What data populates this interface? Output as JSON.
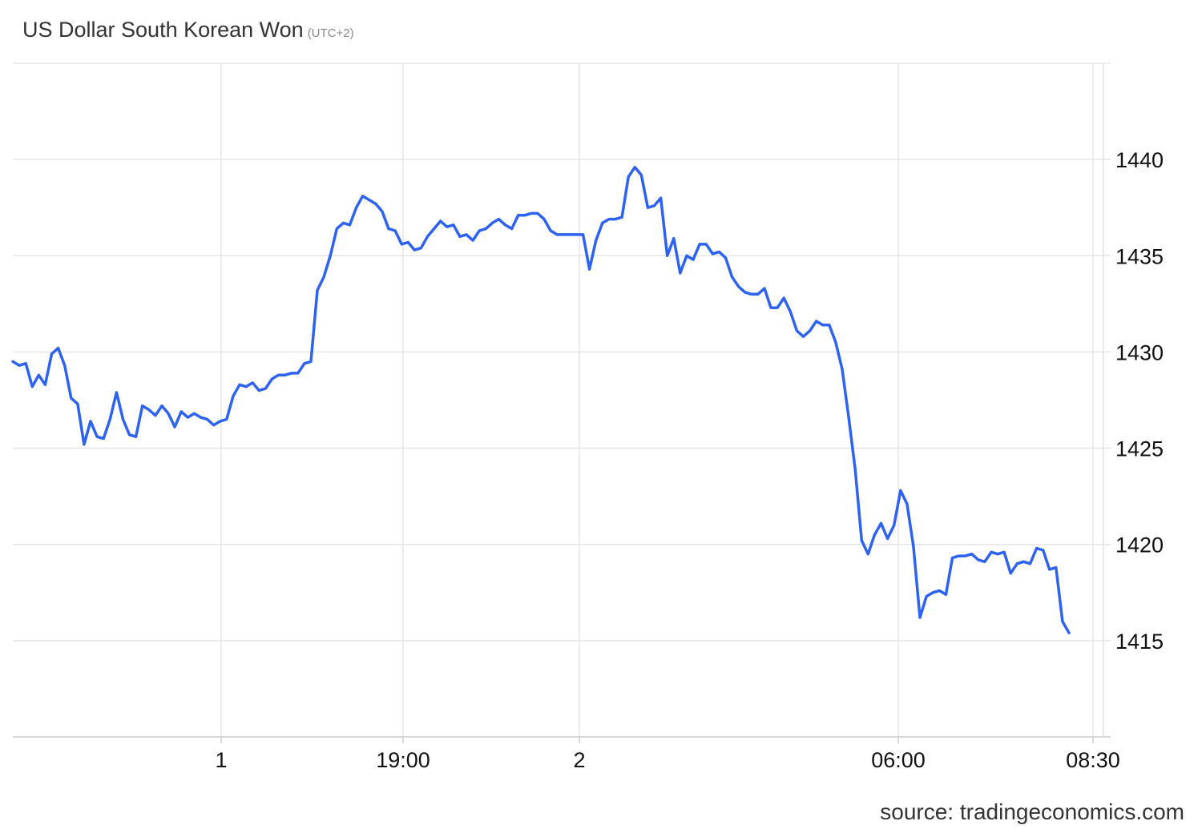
{
  "header": {
    "title": "US Dollar South Korean Won",
    "timezone": "(UTC+2)"
  },
  "footer": {
    "source": "source: tradingeconomics.com"
  },
  "chart_data": {
    "type": "line",
    "title": "US Dollar South Korean Won",
    "subtitle": "(UTC+2)",
    "xlabel": "",
    "ylabel": "",
    "x_tick_labels": [
      "1",
      "19:00",
      "2",
      "06:00",
      "08:30"
    ],
    "y_tick_labels": [
      "1415",
      "1420",
      "1425",
      "1430",
      "1435",
      "1440"
    ],
    "ylim": [
      1410,
      1445
    ],
    "y_axis_position": "right",
    "grid": true,
    "legend": "none",
    "line_color": "#2e62f0",
    "series": [
      {
        "values": [
          1429.5,
          1429.3,
          1429.4,
          1428.2,
          1428.8,
          1428.3,
          1429.9,
          1430.2,
          1429.3,
          1427.6,
          1427.3,
          1425.2,
          1426.4,
          1425.6,
          1425.5,
          1426.5,
          1427.9,
          1426.5,
          1425.7,
          1425.6,
          1427.2,
          1427.0,
          1426.7,
          1427.2,
          1426.8,
          1426.1,
          1426.9,
          1426.6,
          1426.8,
          1426.6,
          1426.5,
          1426.2,
          1426.4,
          1426.5,
          1427.7,
          1428.3,
          1428.2,
          1428.4,
          1428.0,
          1428.1,
          1428.6,
          1428.8,
          1428.8,
          1428.9,
          1428.9,
          1429.4,
          1429.5,
          1433.2,
          1433.9,
          1435.0,
          1436.4,
          1436.7,
          1436.6,
          1437.5,
          1438.1,
          1437.9,
          1437.7,
          1437.3,
          1436.4,
          1436.3,
          1435.6,
          1435.7,
          1435.3,
          1435.4,
          1436.0,
          1436.4,
          1436.8,
          1436.5,
          1436.6,
          1436.0,
          1436.1,
          1435.8,
          1436.3,
          1436.4,
          1436.7,
          1436.9,
          1436.6,
          1436.4,
          1437.1,
          1437.1,
          1437.2,
          1437.2,
          1436.9,
          1436.3,
          1436.1,
          1436.1,
          1436.1,
          1436.1,
          1436.1,
          1434.3,
          1435.8,
          1436.7,
          1436.9,
          1436.9,
          1437.0,
          1439.1,
          1439.6,
          1439.2,
          1437.5,
          1437.6,
          1438.0,
          1435.0,
          1435.9,
          1434.1,
          1435.0,
          1434.8,
          1435.6,
          1435.6,
          1435.1,
          1435.2,
          1434.9,
          1433.9,
          1433.4,
          1433.1,
          1433.0,
          1433.0,
          1433.3,
          1432.3,
          1432.3,
          1432.8,
          1432.1,
          1431.1,
          1430.8,
          1431.1,
          1431.6,
          1431.4,
          1431.4,
          1430.5,
          1429.1,
          1426.6,
          1423.9,
          1420.2,
          1419.5,
          1420.5,
          1421.1,
          1420.3,
          1421.0,
          1422.8,
          1422.1,
          1419.9,
          1416.2,
          1417.3,
          1417.5,
          1417.6,
          1417.4,
          1419.3,
          1419.4,
          1419.4,
          1419.5,
          1419.2,
          1419.1,
          1419.6,
          1419.5,
          1419.6,
          1418.5,
          1419.0,
          1419.1,
          1419.0,
          1419.8,
          1419.7,
          1418.7,
          1418.8,
          1416.0,
          1415.4
        ]
      }
    ]
  }
}
